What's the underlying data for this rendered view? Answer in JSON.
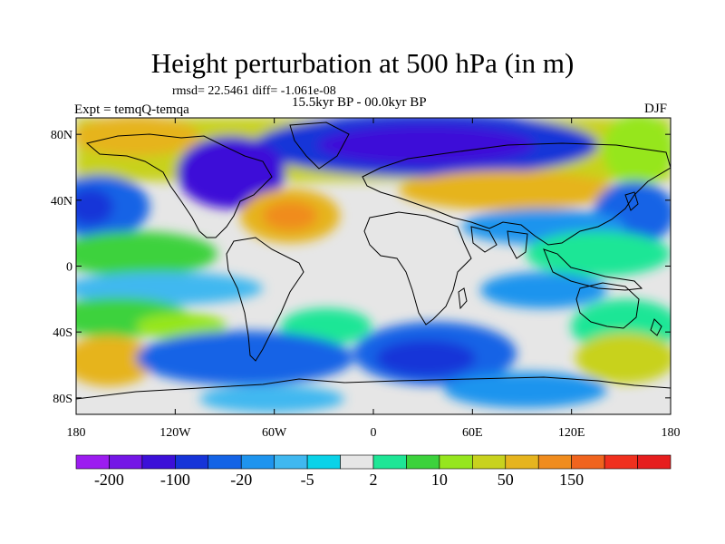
{
  "title": "Height perturbation at 500 hPa (in m)",
  "stats_line": "rmsd= 22.5461 diff= -1.061e-08",
  "period_line": "15.5kyr BP - 00.0kyr BP",
  "experiment_line": "Expt = temqQ-temqa",
  "season": "DJF",
  "map": {
    "projection": "cylindrical equidistant",
    "lon_range": [
      -180,
      180
    ],
    "lat_range": [
      -90,
      90
    ],
    "coastlines": true,
    "lat_ticks": [
      {
        "value": 80,
        "label": "80N"
      },
      {
        "value": 40,
        "label": "40N"
      },
      {
        "value": 0,
        "label": "0"
      },
      {
        "value": -40,
        "label": "40S"
      },
      {
        "value": -80,
        "label": "80S"
      }
    ],
    "lon_ticks": [
      {
        "value": -180,
        "label": "180"
      },
      {
        "value": -120,
        "label": "120W"
      },
      {
        "value": -60,
        "label": "60W"
      },
      {
        "value": 0,
        "label": "0"
      },
      {
        "value": 60,
        "label": "60E"
      },
      {
        "value": 120,
        "label": "120E"
      },
      {
        "value": 180,
        "label": "180"
      }
    ]
  },
  "colorbar": {
    "colors": [
      "#9c1cf0",
      "#7416e6",
      "#3c10d8",
      "#1634d8",
      "#1464e6",
      "#1e94ee",
      "#40b8f0",
      "#0ad2e8",
      "#e6e6e6",
      "#1ee696",
      "#3cd23c",
      "#96e61e",
      "#c8d21e",
      "#e6b41e",
      "#f08c1e",
      "#f0641e",
      "#f0301e",
      "#e61e1e"
    ],
    "labels": [
      {
        "text": "-200",
        "index": 1
      },
      {
        "text": "-100",
        "index": 3
      },
      {
        "text": "-20",
        "index": 5
      },
      {
        "text": "-5",
        "index": 7
      },
      {
        "text": "2",
        "index": 9
      },
      {
        "text": "10",
        "index": 11
      },
      {
        "text": "50",
        "index": 13
      },
      {
        "text": "150",
        "index": 15
      }
    ]
  },
  "field_colors": {
    "neutral": "#e6e6e6",
    "cyan": "#0ad2e8",
    "light_blue": "#40b8f0",
    "mid_blue": "#1e94ee",
    "blue": "#1464e6",
    "deep_blue": "#1634d8",
    "indigo": "#3c10d8",
    "teal": "#1ee696",
    "green": "#3cd23c",
    "yellow_green": "#96e61e",
    "olive": "#c8d21e",
    "orange": "#e6b41e",
    "dark_orange": "#f08c1e"
  }
}
